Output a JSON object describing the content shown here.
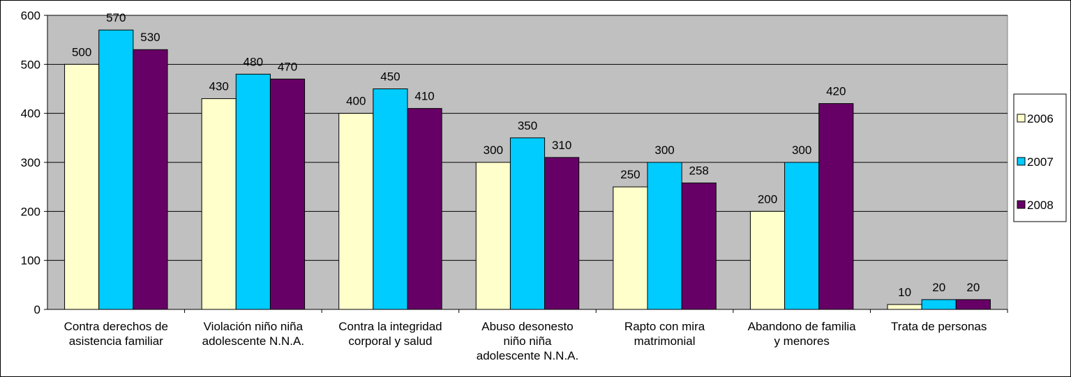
{
  "chart_data": {
    "type": "bar",
    "categories": [
      "Contra derechos de\nasistencia familiar",
      "Violación niño niña\nadolescente N.N.A.",
      "Contra la integridad\ncorporal y salud",
      "Abuso desonesto\nniño niña\nadolescente N.N.A.",
      "Rapto con mira\nmatrimonial",
      "Abandono de familia\ny menores",
      "Trata de personas"
    ],
    "series": [
      {
        "name": "2006",
        "color": "#ffffcc",
        "values": [
          500,
          430,
          400,
          300,
          250,
          200,
          10
        ]
      },
      {
        "name": "2007",
        "color": "#00ccff",
        "values": [
          570,
          480,
          450,
          350,
          300,
          300,
          20
        ]
      },
      {
        "name": "2008",
        "color": "#660066",
        "values": [
          530,
          470,
          410,
          310,
          258,
          420,
          20
        ]
      }
    ],
    "ylim": [
      0,
      600
    ],
    "yticks": [
      0,
      100,
      200,
      300,
      400,
      500,
      600
    ],
    "grid": true,
    "legend": "right"
  }
}
